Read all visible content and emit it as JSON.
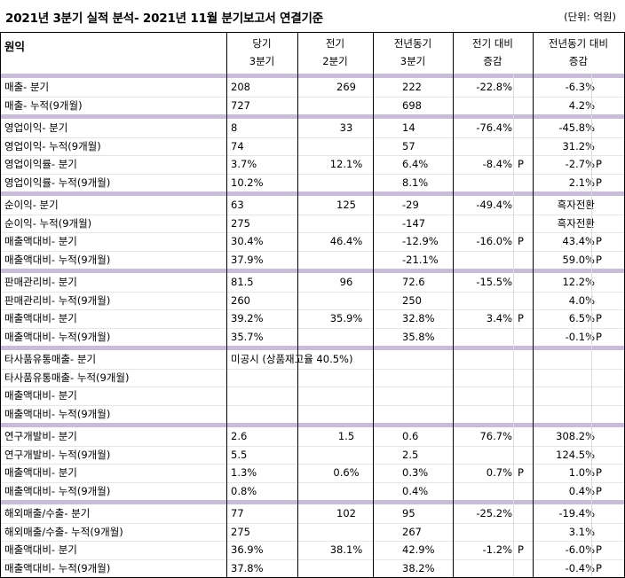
{
  "title": "2021년 3분기 실적 분석- 2021년 11월 분기보고서 연결기준",
  "unit": "(단위: 억원)",
  "header": {
    "label": "원익",
    "cols": [
      [
        "당기",
        "3분기"
      ],
      [
        "전기",
        "2분기"
      ],
      [
        "전년동기",
        "3분기"
      ],
      [
        "전기 대비",
        "증감"
      ],
      [
        "전년동기 대비",
        "증감"
      ]
    ]
  },
  "sections": [
    {
      "rows": [
        {
          "label": "매출- 분기",
          "c1": "208",
          "c2": "269",
          "c3": "222",
          "c4": "-22.8%",
          "c4p": "",
          "c5": "-6.3%",
          "c5p": ""
        },
        {
          "label": "매출- 누적(9개월)",
          "c1": "727",
          "c2": "",
          "c3": "698",
          "c4": "",
          "c4p": "",
          "c5": "4.2%",
          "c5p": ""
        }
      ]
    },
    {
      "rows": [
        {
          "label": "영업이익- 분기",
          "c1": "8",
          "c2": "33",
          "c3": "14",
          "c4": "-76.4%",
          "c4p": "",
          "c5": "-45.8%",
          "c5p": ""
        },
        {
          "label": "영업이익- 누적(9개월)",
          "c1": "74",
          "c2": "",
          "c3": "57",
          "c4": "",
          "c4p": "",
          "c5": "31.2%",
          "c5p": ""
        },
        {
          "label": "영업이익률- 분기",
          "c1": "3.7%",
          "c2": "12.1%",
          "c3": "6.4%",
          "c4": "-8.4%",
          "c4p": "P",
          "c5": "-2.7%",
          "c5p": "P"
        },
        {
          "label": "영업이익률- 누적(9개월)",
          "c1": "10.2%",
          "c2": "",
          "c3": "8.1%",
          "c4": "",
          "c4p": "",
          "c5": "2.1%",
          "c5p": "P"
        }
      ]
    },
    {
      "rows": [
        {
          "label": "순이익- 분기",
          "c1": "63",
          "c2": "125",
          "c3": "-29",
          "c4": "-49.4%",
          "c4p": "",
          "c5": "흑자전환",
          "c5p": ""
        },
        {
          "label": "순이익- 누적(9개월)",
          "c1": "275",
          "c2": "",
          "c3": "-147",
          "c4": "",
          "c4p": "",
          "c5": "흑자전환",
          "c5p": ""
        },
        {
          "label": "매출액대비- 분기",
          "c1": "30.4%",
          "c2": "46.4%",
          "c3": "-12.9%",
          "c4": "-16.0%",
          "c4p": "P",
          "c5": "43.4%",
          "c5p": "P"
        },
        {
          "label": "매출액대비- 누적(9개월)",
          "c1": "37.9%",
          "c2": "",
          "c3": "-21.1%",
          "c4": "",
          "c4p": "",
          "c5": "59.0%",
          "c5p": "P"
        }
      ]
    },
    {
      "rows": [
        {
          "label": "판매관리비- 분기",
          "c1": "81.5",
          "c2": "96",
          "c3": "72.6",
          "c4": "-15.5%",
          "c4p": "",
          "c5": "12.2%",
          "c5p": ""
        },
        {
          "label": "판매관리비- 누적(9개월)",
          "c1": "260",
          "c2": "",
          "c3": "250",
          "c4": "",
          "c4p": "",
          "c5": "4.0%",
          "c5p": ""
        },
        {
          "label": "매출액대비- 분기",
          "c1": "39.2%",
          "c2": "35.9%",
          "c3": "32.8%",
          "c4": "3.4%",
          "c4p": "P",
          "c5": "6.5%",
          "c5p": "P"
        },
        {
          "label": "매출액대비- 누적(9개월)",
          "c1": "35.7%",
          "c2": "",
          "c3": "35.8%",
          "c4": "",
          "c4p": "",
          "c5": "-0.1%",
          "c5p": "P"
        }
      ]
    },
    {
      "rows": [
        {
          "label": "타사품유통매출- 분기",
          "c1": "미공시 (상품재고율 40.5%)",
          "c2": "",
          "c3": "",
          "c4": "",
          "c4p": "",
          "c5": "",
          "c5p": ""
        },
        {
          "label": "타사품유통매출- 누적(9개월)",
          "c1": "",
          "c2": "",
          "c3": "",
          "c4": "",
          "c4p": "",
          "c5": "",
          "c5p": ""
        },
        {
          "label": "매출액대비- 분기",
          "c1": "",
          "c2": "",
          "c3": "",
          "c4": "",
          "c4p": "",
          "c5": "",
          "c5p": ""
        },
        {
          "label": "매출액대비- 누적(9개월)",
          "c1": "",
          "c2": "",
          "c3": "",
          "c4": "",
          "c4p": "",
          "c5": "",
          "c5p": ""
        }
      ]
    },
    {
      "rows": [
        {
          "label": "연구개발비- 분기",
          "c1": "2.6",
          "c2": "1.5",
          "c3": "0.6",
          "c4": "76.7%",
          "c4p": "",
          "c5": "308.2%",
          "c5p": ""
        },
        {
          "label": "연구개발비- 누적(9개월)",
          "c1": "5.5",
          "c2": "",
          "c3": "2.5",
          "c4": "",
          "c4p": "",
          "c5": "124.5%",
          "c5p": ""
        },
        {
          "label": "매출액대비- 분기",
          "c1": "1.3%",
          "c2": "0.6%",
          "c3": "0.3%",
          "c4": "0.7%",
          "c4p": "P",
          "c5": "1.0%",
          "c5p": "P"
        },
        {
          "label": "매출액대비- 누적(9개월)",
          "c1": "0.8%",
          "c2": "",
          "c3": "0.4%",
          "c4": "",
          "c4p": "",
          "c5": "0.4%",
          "c5p": "P"
        }
      ]
    },
    {
      "rows": [
        {
          "label": "해외매출/수출- 분기",
          "c1": "77",
          "c2": "102",
          "c3": "95",
          "c4": "-25.2%",
          "c4p": "",
          "c5": "-19.4%",
          "c5p": ""
        },
        {
          "label": "해외매출/수출- 누적(9개월)",
          "c1": "275",
          "c2": "",
          "c3": "267",
          "c4": "",
          "c4p": "",
          "c5": "3.1%",
          "c5p": ""
        },
        {
          "label": "매출액대비- 분기",
          "c1": "36.9%",
          "c2": "38.1%",
          "c3": "42.9%",
          "c4": "-1.2%",
          "c4p": "P",
          "c5": "-6.0%",
          "c5p": "P"
        },
        {
          "label": "매출액대비- 누적(9개월)",
          "c1": "37.8%",
          "c2": "",
          "c3": "38.2%",
          "c4": "",
          "c4p": "",
          "c5": "-0.4%",
          "c5p": "P"
        }
      ]
    }
  ]
}
